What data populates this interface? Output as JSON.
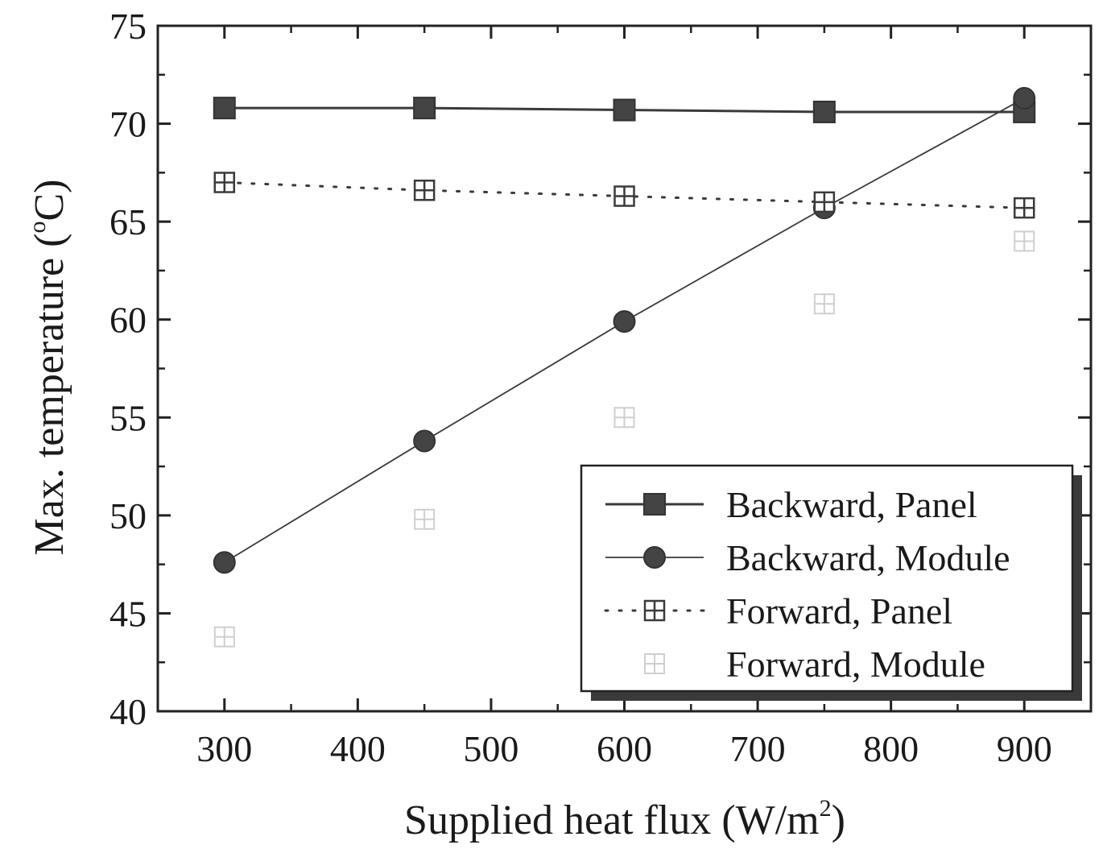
{
  "chart_data": {
    "type": "line",
    "title": "",
    "xlabel": "Supplied heat flux (W/m",
    "xlabel_sup": "2",
    "xlabel_end": ")",
    "ylabel": "Max. temperature (",
    "ylabel_deg": "o",
    "ylabel_end": "C)",
    "xlim": [
      250,
      950
    ],
    "ylim": [
      40,
      75
    ],
    "xticks": [
      300,
      400,
      500,
      600,
      700,
      800,
      900
    ],
    "yticks": [
      40,
      45,
      50,
      55,
      60,
      65,
      70,
      75
    ],
    "x": [
      300,
      450,
      600,
      750,
      900
    ],
    "grid": false,
    "legend_position": "bottom-right",
    "series": [
      {
        "name": "Backward, Panel",
        "values": [
          70.8,
          70.8,
          70.7,
          70.6,
          70.6
        ],
        "marker": "square",
        "line": "solid",
        "color": "#3a3a3a"
      },
      {
        "name": "Backward, Module",
        "values": [
          47.6,
          53.8,
          59.9,
          65.7,
          71.3
        ],
        "marker": "circle",
        "line": "thin",
        "color": "#3a3a3a"
      },
      {
        "name": "Forward, Panel",
        "values": [
          67.0,
          66.6,
          66.3,
          66.0,
          65.7
        ],
        "marker": "square-cross",
        "line": "dotted",
        "color": "#3a3a3a"
      },
      {
        "name": "Forward, Module",
        "values": [
          43.8,
          49.8,
          55.0,
          60.8,
          64.0
        ],
        "marker": "square-cross-faint",
        "line": "none",
        "color": "#cfcfcf"
      }
    ]
  }
}
